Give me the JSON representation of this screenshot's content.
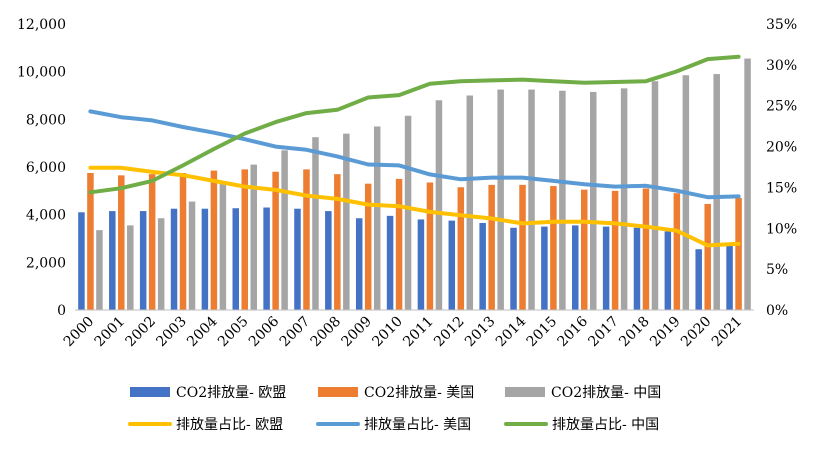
{
  "chart_data": {
    "type": "bar+line",
    "title": "",
    "categories": [
      "2000",
      "2001",
      "2002",
      "2003",
      "2004",
      "2005",
      "2006",
      "2007",
      "2008",
      "2009",
      "2010",
      "2011",
      "2012",
      "2013",
      "2014",
      "2015",
      "2016",
      "2017",
      "2018",
      "2019",
      "2020",
      "2021"
    ],
    "left_axis": {
      "ylim": [
        0,
        12000
      ],
      "ticks": [
        0,
        2000,
        4000,
        6000,
        8000,
        10000,
        12000
      ],
      "tick_labels": [
        "0",
        "2,000",
        "4,000",
        "6,000",
        "8,000",
        "10,000",
        "12,000"
      ]
    },
    "right_axis": {
      "ylim": [
        0,
        35
      ],
      "ticks": [
        0,
        5,
        10,
        15,
        20,
        25,
        30,
        35
      ],
      "tick_labels": [
        "0%",
        "5%",
        "10%",
        "15%",
        "20%",
        "25%",
        "30%",
        "35%"
      ]
    },
    "bar_series": [
      {
        "name": "CO2排放量- 欧盟",
        "color": "#4472C4",
        "values": [
          4100,
          4150,
          4150,
          4250,
          4250,
          4270,
          4300,
          4250,
          4150,
          3850,
          3950,
          3800,
          3750,
          3650,
          3450,
          3500,
          3550,
          3500,
          3450,
          3300,
          2550,
          2700
        ]
      },
      {
        "name": "CO2排放量- 美国",
        "color": "#ED7D31",
        "values": [
          5750,
          5650,
          5700,
          5750,
          5850,
          5900,
          5800,
          5900,
          5700,
          5300,
          5500,
          5350,
          5150,
          5250,
          5250,
          5200,
          5050,
          5000,
          5100,
          4900,
          4450,
          4700
        ]
      },
      {
        "name": "CO2排放量- 中国",
        "color": "#A5A5A5",
        "values": [
          3350,
          3550,
          3850,
          4550,
          5300,
          6100,
          6700,
          7250,
          7400,
          7700,
          8150,
          8800,
          9000,
          9250,
          9250,
          9200,
          9150,
          9300,
          9600,
          9850,
          9900,
          10550
        ]
      }
    ],
    "line_series": [
      {
        "name": "排放量占比- 欧盟",
        "color": "#FFC000",
        "values": [
          17.4,
          17.4,
          16.9,
          16.5,
          15.8,
          15.1,
          14.7,
          14.0,
          13.6,
          12.9,
          12.7,
          12.0,
          11.6,
          11.2,
          10.6,
          10.8,
          10.8,
          10.6,
          10.2,
          9.7,
          7.9,
          8.1
        ]
      },
      {
        "name": "排放量占比- 美国",
        "color": "#5B9BD5",
        "values": [
          24.3,
          23.6,
          23.2,
          22.4,
          21.7,
          20.9,
          20.0,
          19.6,
          18.8,
          17.8,
          17.7,
          16.6,
          16.0,
          16.2,
          16.2,
          15.8,
          15.4,
          15.1,
          15.2,
          14.6,
          13.8,
          13.9
        ]
      },
      {
        "name": "排放量占比- 中国",
        "color": "#70AD47",
        "values": [
          14.4,
          14.9,
          15.8,
          17.7,
          19.7,
          21.6,
          23.0,
          24.1,
          24.5,
          26.0,
          26.3,
          27.7,
          28.0,
          28.1,
          28.2,
          28.0,
          27.8,
          27.9,
          28.0,
          29.2,
          30.7,
          31.0
        ]
      }
    ],
    "legend_position": "bottom",
    "gridlines": false
  }
}
